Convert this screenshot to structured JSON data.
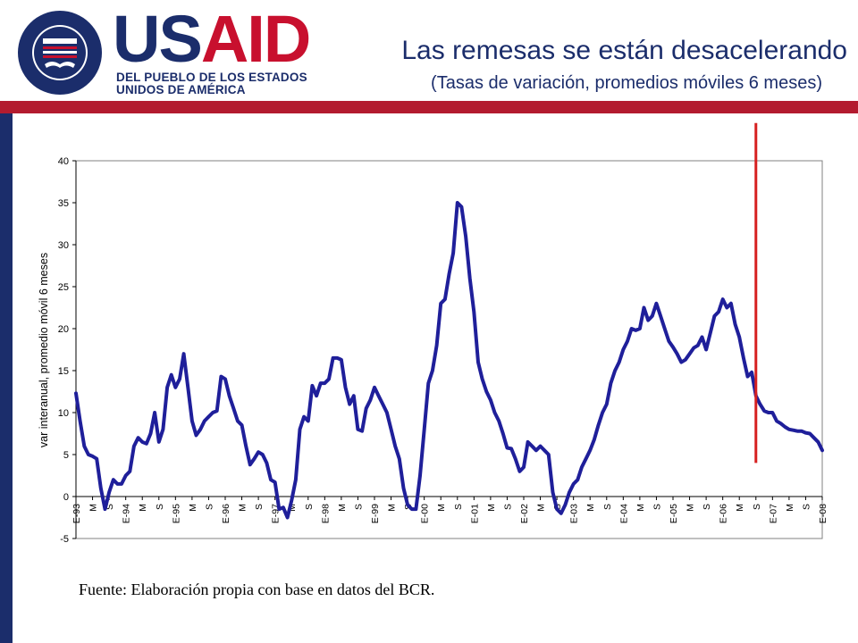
{
  "header": {
    "brand_us": "US",
    "brand_aid": "AID",
    "tagline_line1": "DEL PUEBLO DE LOS ESTADOS",
    "tagline_line2": "UNIDOS DE AMÉRICA",
    "title": "Las remesas se están desacelerando",
    "subtitle": "(Tasas de variación, promedios móviles 6 meses)"
  },
  "colors": {
    "navy": "#1b2d6b",
    "red": "#c8102e",
    "series": "#1f1f9a",
    "marker": "#d62020"
  },
  "icons": {
    "seal": "usaid-seal-icon"
  },
  "source": "Fuente: Elaboración propia con base en datos del BCR.",
  "chart_data": {
    "type": "line",
    "ylabel": "var interanual, promedio móvil 6 meses",
    "xlabel": "",
    "ylim": [
      -5,
      40
    ],
    "yticks": [
      -5,
      0,
      5,
      10,
      15,
      20,
      25,
      30,
      35,
      40
    ],
    "xticks": [
      "E-93",
      "M",
      "S",
      "E-94",
      "M",
      "S",
      "E-95",
      "M",
      "S",
      "E-96",
      "M",
      "S",
      "E-97",
      "M",
      "S",
      "E-98",
      "M",
      "S",
      "E-99",
      "M",
      "S",
      "E-00",
      "M",
      "S",
      "E-01",
      "M",
      "S",
      "E-02",
      "M",
      "S",
      "E-03",
      "M",
      "S",
      "E-04",
      "M",
      "S",
      "E-05",
      "M",
      "S",
      "E-06",
      "M",
      "S",
      "E-07",
      "M",
      "S",
      "E-08"
    ],
    "x_start": "1993-01",
    "x_end": "2008-01",
    "grid": false,
    "legend": "none",
    "series": [
      {
        "x": [
          0,
          1,
          2,
          3,
          4,
          5,
          6,
          7,
          8,
          9,
          10,
          11,
          12,
          13,
          14,
          15,
          16,
          17,
          18,
          19,
          20,
          21,
          22,
          23,
          24,
          25,
          26,
          27,
          28,
          29,
          30,
          31,
          32,
          33,
          34,
          35,
          36,
          37,
          38,
          39,
          40,
          41,
          42,
          43,
          44,
          45,
          46,
          47,
          48,
          49,
          50,
          51,
          52,
          53,
          54,
          55,
          56,
          57,
          58,
          59,
          60,
          61,
          62,
          63,
          64,
          65,
          66,
          67,
          68,
          69,
          70,
          71,
          72,
          73,
          74,
          75,
          76,
          77,
          78,
          79,
          80,
          81,
          82,
          83,
          84,
          85,
          86,
          87,
          88,
          89,
          90,
          91,
          92,
          93,
          94,
          95,
          96,
          97,
          98,
          99,
          100,
          101,
          102,
          103,
          104,
          105,
          106,
          107,
          108,
          109,
          110,
          111,
          112,
          113,
          114,
          115,
          116,
          117,
          118,
          119,
          120,
          121,
          122,
          123,
          124,
          125,
          126,
          127,
          128,
          129,
          130,
          131,
          132,
          133,
          134,
          135,
          136,
          137,
          138,
          139,
          140,
          141,
          142,
          143,
          144,
          145,
          146,
          147,
          148,
          149,
          150,
          151,
          152,
          153,
          154,
          155,
          156,
          157,
          158,
          159,
          160,
          161,
          162,
          163,
          164,
          165,
          166,
          167,
          168,
          169,
          170,
          171,
          172,
          173,
          174,
          175,
          176,
          177,
          178,
          179,
          180
        ],
        "values": [
          12.3,
          9.0,
          6.0,
          5.0,
          4.8,
          4.5,
          1.0,
          -1.5,
          0.5,
          2.0,
          1.5,
          1.5,
          2.5,
          3.0,
          6.0,
          7.0,
          6.5,
          6.3,
          7.5,
          10.0,
          6.5,
          8.0,
          13.0,
          14.5,
          13.0,
          14.0,
          17.0,
          13.0,
          9.0,
          7.3,
          8.0,
          9.0,
          9.5,
          10.0,
          10.2,
          14.3,
          14.0,
          12.0,
          10.5,
          9.0,
          8.5,
          6.0,
          3.8,
          4.5,
          5.3,
          5.0,
          4.0,
          2.0,
          1.7,
          -1.5,
          -1.3,
          -2.5,
          -0.5,
          2.0,
          8.0,
          9.5,
          9.0,
          13.2,
          12.0,
          13.5,
          13.5,
          14.0,
          16.5,
          16.5,
          16.3,
          13.0,
          11.0,
          12.0,
          8.0,
          7.8,
          10.5,
          11.5,
          13.0,
          12.0,
          11.0,
          10.0,
          8.0,
          6.0,
          4.5,
          1.0,
          -1.0,
          -1.5,
          -1.5,
          2.5,
          8.0,
          13.5,
          15.0,
          18.0,
          23.0,
          23.5,
          26.5,
          29.0,
          35.0,
          34.5,
          31.0,
          26.0,
          22.0,
          16.0,
          14.0,
          12.5,
          11.5,
          10.0,
          9.0,
          7.5,
          5.8,
          5.7,
          4.5,
          3.0,
          3.5,
          6.5,
          6.0,
          5.5,
          6.0,
          5.5,
          5.0,
          0.5,
          -1.5,
          -2.0,
          -1.0,
          0.5,
          1.5,
          2.0,
          3.5,
          4.5,
          5.5,
          6.8,
          8.5,
          10.0,
          11.0,
          13.5,
          15.0,
          16.0,
          17.5,
          18.5,
          20.0,
          19.8,
          20.0,
          22.5,
          21.0,
          21.5,
          23.0,
          21.5,
          20.0,
          18.5,
          17.8,
          17.0,
          16.0,
          16.3,
          17.0,
          17.7,
          18.0,
          19.0,
          17.5,
          19.5,
          21.5,
          22.0,
          23.5,
          22.5,
          23.0,
          20.5,
          19.0,
          16.5,
          14.3,
          14.8,
          12.0,
          11.0,
          10.2,
          10.0,
          10.0,
          9.0,
          8.7,
          8.3,
          8.0,
          7.9,
          7.8,
          7.8,
          7.6,
          7.5,
          7.0,
          6.5,
          5.5
        ],
        "color": "#1f1f9a"
      }
    ],
    "marker_line": {
      "x": 164,
      "y_from": 4,
      "y_to": 44.5,
      "color": "#d62020"
    }
  }
}
